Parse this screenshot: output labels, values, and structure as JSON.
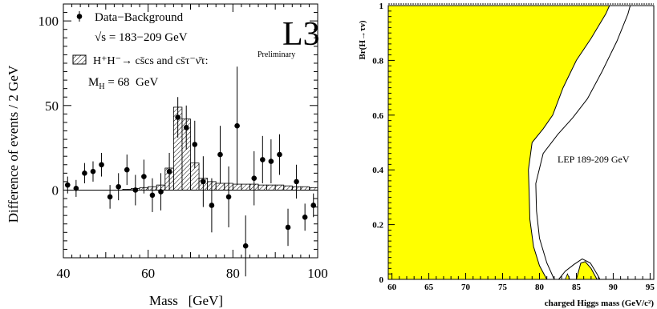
{
  "chart_data": [
    {
      "type": "scatter",
      "logo": "L3",
      "logo_sub": "Preliminary",
      "legend": {
        "data_label": "Data−Background",
        "sqrt_s": "√s = 183−209 GeV",
        "signal_line1": "H⁺H⁻→ cs̄cs and cs̄τ⁻ν̄τ:",
        "signal_line2": "M",
        "signal_line2_sub": "H",
        "signal_line2_rest": " = 68  GeV"
      },
      "xlabel": "Mass   [GeV]",
      "ylabel": "Difference of events / 2 GeV",
      "xlim": [
        40,
        100
      ],
      "ylim": [
        -40,
        110
      ],
      "xticks": [
        "40",
        "60",
        "80",
        "100"
      ],
      "yticks": [
        "0",
        "50",
        "100"
      ],
      "points": [
        {
          "x": 41,
          "y": 3,
          "err": 5
        },
        {
          "x": 43,
          "y": 1,
          "err": 5
        },
        {
          "x": 45,
          "y": 10,
          "err": 6
        },
        {
          "x": 47,
          "y": 11,
          "err": 6
        },
        {
          "x": 49,
          "y": 15,
          "err": 7
        },
        {
          "x": 51,
          "y": -4,
          "err": 7
        },
        {
          "x": 53,
          "y": 2,
          "err": 8
        },
        {
          "x": 55,
          "y": 12,
          "err": 9
        },
        {
          "x": 57,
          "y": 0,
          "err": 9
        },
        {
          "x": 59,
          "y": 8,
          "err": 10
        },
        {
          "x": 61,
          "y": -3,
          "err": 10
        },
        {
          "x": 63,
          "y": -1,
          "err": 11
        },
        {
          "x": 65,
          "y": 11,
          "err": 11
        },
        {
          "x": 67,
          "y": 43,
          "err": 12
        },
        {
          "x": 69,
          "y": 37,
          "err": 13
        },
        {
          "x": 71,
          "y": 27,
          "err": 14
        },
        {
          "x": 73,
          "y": 5,
          "err": 15
        },
        {
          "x": 75,
          "y": -9,
          "err": 16
        },
        {
          "x": 77,
          "y": 21,
          "err": 17
        },
        {
          "x": 79,
          "y": -4,
          "err": 18
        },
        {
          "x": 81,
          "y": 38,
          "err": 35
        },
        {
          "x": 83,
          "y": -33,
          "err": 18
        },
        {
          "x": 85,
          "y": 7,
          "err": 16
        },
        {
          "x": 87,
          "y": 18,
          "err": 14
        },
        {
          "x": 89,
          "y": 17,
          "err": 13
        },
        {
          "x": 91,
          "y": 21,
          "err": 12
        },
        {
          "x": 93,
          "y": -22,
          "err": 11
        },
        {
          "x": 95,
          "y": 5,
          "err": 10
        },
        {
          "x": 97,
          "y": -16,
          "err": 8
        },
        {
          "x": 99,
          "y": -9,
          "err": 7
        }
      ],
      "signal_histogram": {
        "bin_edges": [
          40,
          42,
          44,
          46,
          48,
          50,
          52,
          54,
          56,
          58,
          60,
          62,
          64,
          66,
          68,
          70,
          72,
          74,
          76,
          78,
          80,
          82,
          84,
          86,
          88,
          90,
          92,
          94,
          96,
          98,
          100
        ],
        "values": [
          0,
          0,
          0,
          0,
          0,
          0,
          0,
          0.5,
          1,
          1.5,
          2,
          3,
          13,
          49,
          42,
          16,
          7,
          5,
          4,
          4,
          3.5,
          3.5,
          3.5,
          3,
          3,
          3,
          2.5,
          2,
          2,
          1.5
        ]
      }
    },
    {
      "type": "area",
      "ylabel": "Br(H→τν)",
      "xlabel": "charged Higgs mass (GeV/c²)",
      "annotation": "LEP 189-209 GeV",
      "xlim": [
        59.5,
        95.5
      ],
      "ylim": [
        0,
        1
      ],
      "xticks": [
        "60",
        "65",
        "70",
        "75",
        "80",
        "85",
        "90",
        "95"
      ],
      "yticks": [
        "0",
        "0.2",
        "0.4",
        "0.6",
        "0.8",
        "1"
      ],
      "fill_color": "#ffff00",
      "excluded_boundary": [
        {
          "x": 81.0,
          "y": 0.0
        },
        {
          "x": 80.0,
          "y": 0.05
        },
        {
          "x": 79.2,
          "y": 0.12
        },
        {
          "x": 78.7,
          "y": 0.22
        },
        {
          "x": 78.6,
          "y": 0.32
        },
        {
          "x": 78.5,
          "y": 0.4
        },
        {
          "x": 79.0,
          "y": 0.5
        },
        {
          "x": 80.5,
          "y": 0.55
        },
        {
          "x": 81.8,
          "y": 0.6
        },
        {
          "x": 83.2,
          "y": 0.7
        },
        {
          "x": 85.0,
          "y": 0.8
        },
        {
          "x": 87.0,
          "y": 0.88
        },
        {
          "x": 89.0,
          "y": 0.97
        },
        {
          "x": 89.5,
          "y": 1.0
        }
      ],
      "expected_boundary": [
        {
          "x": 82.0,
          "y": 0.0
        },
        {
          "x": 81.0,
          "y": 0.06
        },
        {
          "x": 80.0,
          "y": 0.15
        },
        {
          "x": 79.6,
          "y": 0.25
        },
        {
          "x": 79.5,
          "y": 0.35
        },
        {
          "x": 80.5,
          "y": 0.46
        },
        {
          "x": 82.5,
          "y": 0.53
        },
        {
          "x": 84.5,
          "y": 0.59
        },
        {
          "x": 86.5,
          "y": 0.66
        },
        {
          "x": 88.5,
          "y": 0.76
        },
        {
          "x": 90.5,
          "y": 0.87
        },
        {
          "x": 92.0,
          "y": 0.97
        },
        {
          "x": 92.3,
          "y": 1.0
        }
      ],
      "island_excluded": [
        {
          "x": 85.0,
          "y": 0.0
        },
        {
          "x": 85.6,
          "y": 0.06
        },
        {
          "x": 86.2,
          "y": 0.065
        },
        {
          "x": 87.0,
          "y": 0.04
        },
        {
          "x": 87.8,
          "y": 0.0
        }
      ],
      "island_expected": [
        {
          "x": 82.6,
          "y": 0.0
        },
        {
          "x": 83.5,
          "y": 0.03
        },
        {
          "x": 84.7,
          "y": 0.055
        },
        {
          "x": 85.8,
          "y": 0.075
        },
        {
          "x": 86.9,
          "y": 0.06
        },
        {
          "x": 87.8,
          "y": 0.02
        },
        {
          "x": 88.2,
          "y": 0.0
        }
      ],
      "small_wedge": [
        {
          "x": 83.5,
          "y": 0.0
        },
        {
          "x": 83.8,
          "y": 0.02
        },
        {
          "x": 84.1,
          "y": 0.0
        }
      ]
    }
  ]
}
